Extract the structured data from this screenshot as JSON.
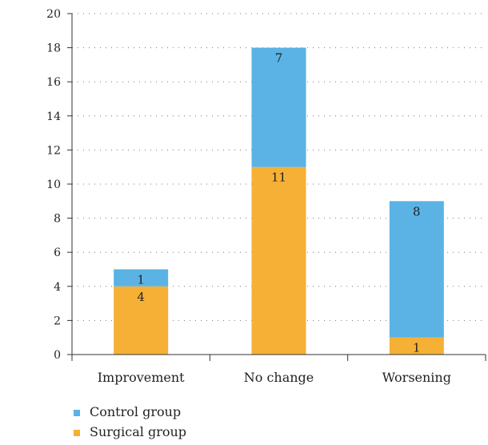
{
  "chart_data": {
    "type": "bar",
    "stacked": true,
    "categories": [
      "Improvement",
      "No change",
      "Worsening"
    ],
    "series": [
      {
        "name": "Surgical group",
        "values": [
          4,
          11,
          1
        ],
        "color": "#f5b035",
        "value_labels": [
          "4",
          "11",
          "1"
        ]
      },
      {
        "name": "Control group",
        "values": [
          1,
          7,
          8
        ],
        "color": "#5ab3e4",
        "value_labels": [
          "1",
          "7",
          "8"
        ]
      }
    ],
    "legend_order": [
      "Control group",
      "Surgical group"
    ],
    "ylim": [
      0,
      20
    ],
    "yticks": [
      "0",
      "2",
      "4",
      "6",
      "8",
      "10",
      "12",
      "14",
      "16",
      "18",
      "20"
    ],
    "grid": "horizontal dotted",
    "legend_position": "bottom-left"
  }
}
